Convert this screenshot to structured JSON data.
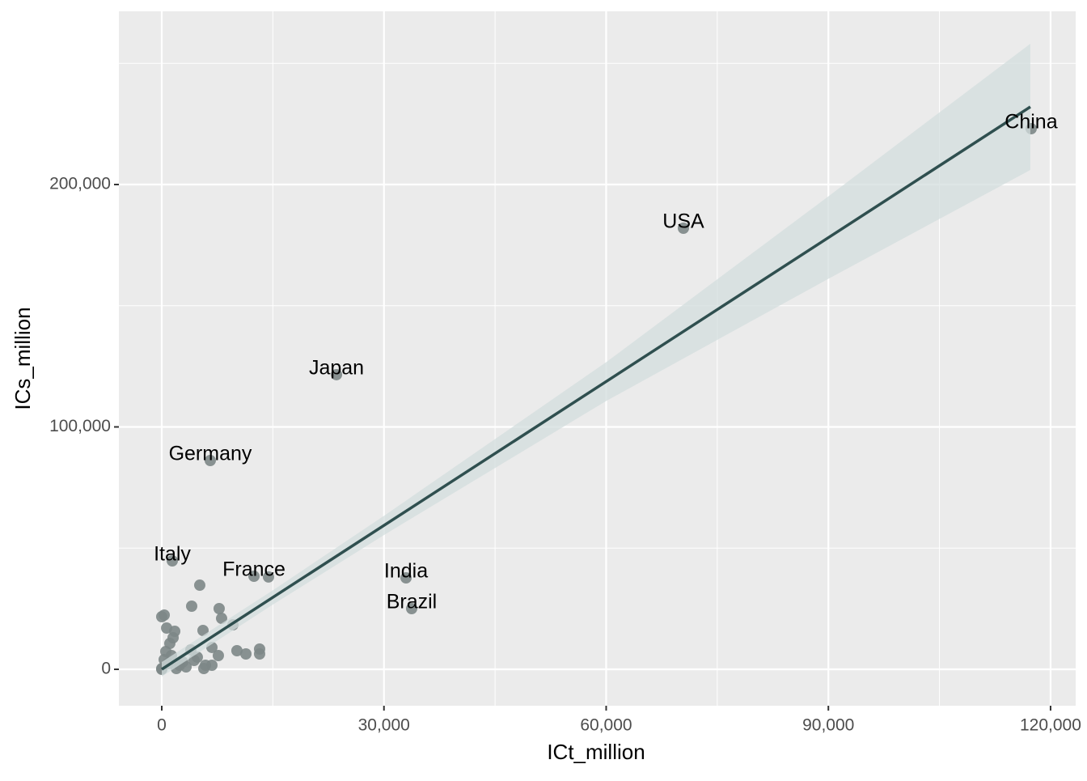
{
  "chart_data": {
    "type": "scatter",
    "x_label": "ICt_million",
    "y_label": "ICs_million",
    "xlim": [
      -5787,
      123390
    ],
    "ylim": [
      -15025,
      271450
    ],
    "xticks": [
      0,
      {
        "value": 30000,
        "label": "30,000"
      },
      {
        "value": 60000,
        "label": "60,000"
      },
      {
        "value": 90000,
        "label": "90,000"
      },
      {
        "value": 120000,
        "label": "120,000"
      }
    ],
    "yticks": [
      0,
      {
        "value": 100000,
        "label": "100,000"
      },
      {
        "value": 200000,
        "label": "200,000"
      }
    ],
    "x_minor_ticks": [
      15000,
      45000,
      75000,
      105000
    ],
    "y_minor_ticks": [
      50000,
      150000,
      250000
    ],
    "grid": true,
    "series": [
      {
        "color": "#7d8787",
        "x": [
          117380,
          70430,
          23590,
          6550,
          1420,
          12450,
          14410,
          32980,
          33740,
          0,
          330,
          660,
          1750,
          4040,
          5130,
          5570,
          7750,
          8080,
          9610,
          10150,
          11360,
          13210,
          13210,
          6770,
          7640,
          3930,
          4800,
          2840,
          1310,
          550,
          1090,
          1530,
          330,
          0,
          1970,
          3280,
          5900,
          6770,
          5680,
          0,
          2400,
          4370,
          870
        ],
        "values": [
          223040,
          181970,
          121540,
          86140,
          44740,
          38400,
          38100,
          37730,
          25040,
          21700,
          22370,
          17030,
          15690,
          26040,
          34720,
          16030,
          25040,
          21030,
          18360,
          7680,
          6340,
          8350,
          6340,
          9020,
          5680,
          8010,
          5010,
          3010,
          5680,
          7350,
          10680,
          13020,
          4010,
          300,
          330,
          1000,
          1670,
          1670,
          330,
          0,
          1670,
          3670,
          2340
        ],
        "labels": [
          "China",
          "USA",
          "Japan",
          "Germany",
          "Italy",
          "France",
          null,
          "India",
          "Brazil",
          null,
          null,
          null,
          null,
          null,
          null,
          null,
          null,
          null,
          null,
          null,
          null,
          null,
          null,
          null,
          null,
          null,
          null,
          null,
          null,
          null,
          null,
          null,
          null,
          null,
          null,
          null,
          null,
          null,
          null,
          null,
          null,
          null,
          null
        ]
      }
    ],
    "fit": {
      "color": "#2f4f4f",
      "x": [
        0,
        117270
      ],
      "values": [
        0,
        232050
      ]
    },
    "band": {
      "color": "#d3dddd",
      "x": [
        0,
        15000,
        30000,
        60000,
        90000,
        117270
      ],
      "lower": [
        -3000,
        26700,
        55400,
        110700,
        161100,
        206010
      ],
      "upper": [
        3000,
        32600,
        63300,
        126700,
        195100,
        258100
      ]
    }
  }
}
